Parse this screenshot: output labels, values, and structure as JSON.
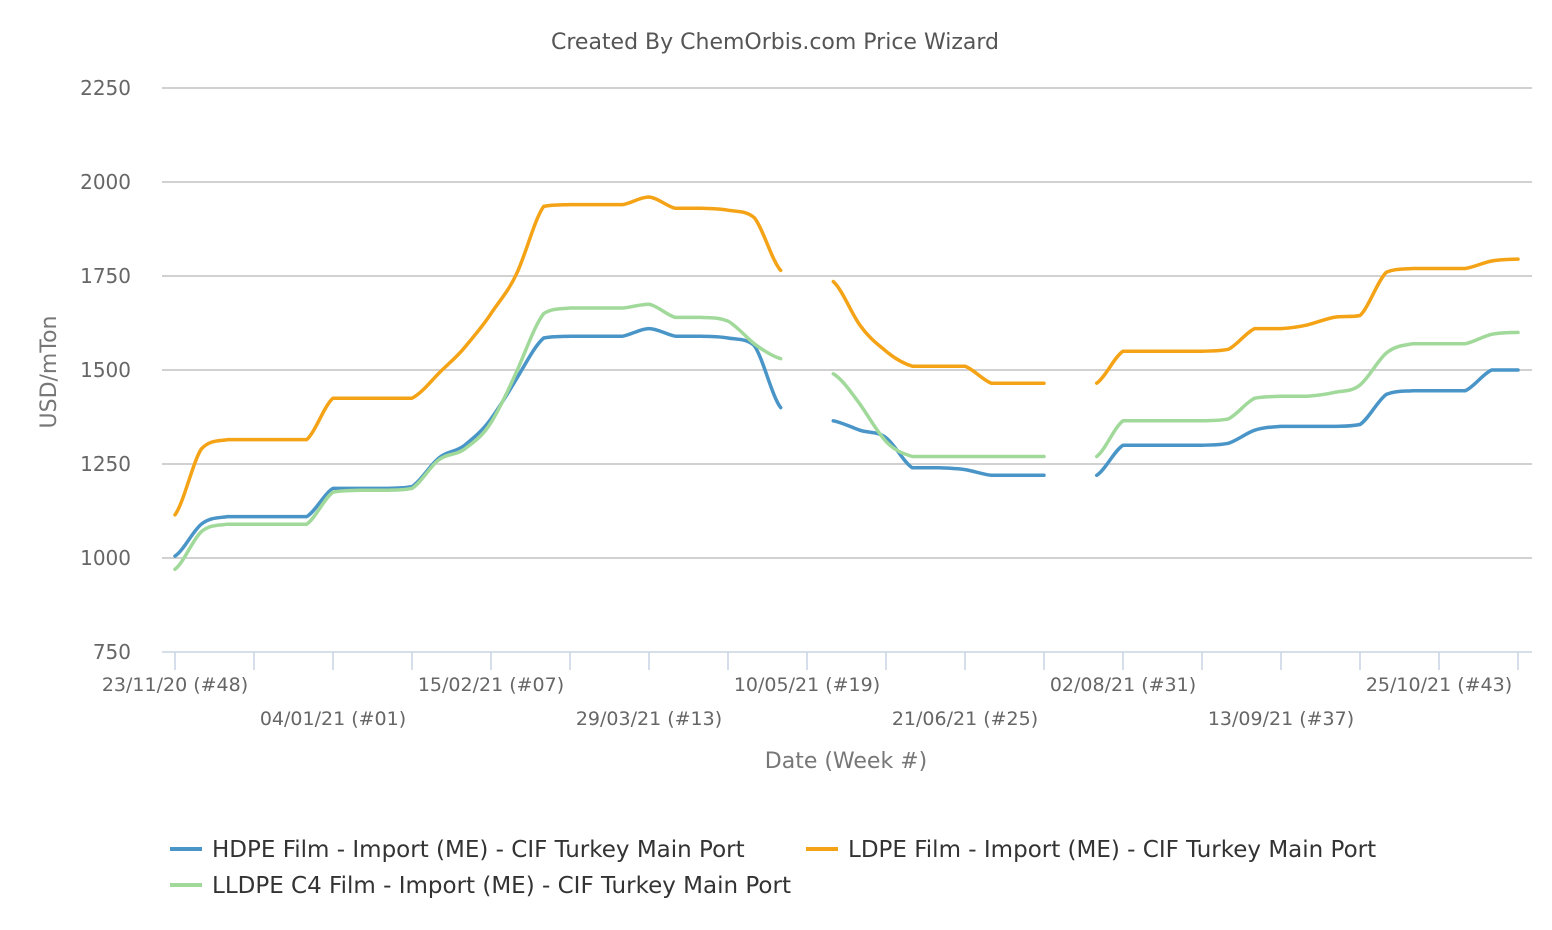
{
  "chart_data": {
    "type": "line",
    "title": "Created By ChemOrbis.com Price Wizard",
    "xlabel": "Date (Week #)",
    "ylabel": "USD/mTon",
    "ylim": [
      750,
      2250
    ],
    "yticks": [
      750,
      1000,
      1250,
      1500,
      1750,
      2000,
      2250
    ],
    "grid": true,
    "legend_position": "bottom",
    "x_tick_labels": [
      {
        "week": 0,
        "label": "23/11/20 (#48)"
      },
      {
        "week": 6,
        "label": "04/01/21 (#01)"
      },
      {
        "week": 12,
        "label": "15/02/21 (#07)"
      },
      {
        "week": 18,
        "label": "29/03/21 (#13)"
      },
      {
        "week": 24,
        "label": "10/05/21 (#19)"
      },
      {
        "week": 30,
        "label": "21/06/21 (#25)"
      },
      {
        "week": 36,
        "label": "02/08/21 (#31)"
      },
      {
        "week": 42,
        "label": "13/09/21 (#37)"
      },
      {
        "week": 48,
        "label": "25/10/21 (#43)"
      }
    ],
    "x_extra_ticks": [
      3,
      9,
      15,
      21,
      27,
      33,
      39,
      45,
      51
    ],
    "x_range": [
      0,
      51
    ],
    "series": [
      {
        "name": "HDPE Film - Import (ME) - CIF Turkey Main Port",
        "color": "#4a95c8",
        "segments": [
          [
            [
              0,
              1005
            ],
            [
              1,
              1090
            ],
            [
              2,
              1110
            ],
            [
              3,
              1110
            ],
            [
              4,
              1110
            ],
            [
              5,
              1110
            ],
            [
              6,
              1185
            ],
            [
              7,
              1185
            ],
            [
              8,
              1185
            ],
            [
              9,
              1190
            ],
            [
              10,
              1265
            ],
            [
              11,
              1300
            ],
            [
              12,
              1370
            ],
            [
              13,
              1480
            ],
            [
              14,
              1585
            ],
            [
              15,
              1590
            ],
            [
              16,
              1590
            ],
            [
              17,
              1590
            ],
            [
              18,
              1610
            ],
            [
              19,
              1590
            ],
            [
              20,
              1590
            ],
            [
              21,
              1585
            ],
            [
              22,
              1565
            ],
            [
              23,
              1400
            ]
          ],
          [
            [
              25,
              1365
            ],
            [
              26,
              1340
            ],
            [
              27,
              1320
            ],
            [
              28,
              1240
            ],
            [
              29,
              1240
            ],
            [
              30,
              1235
            ],
            [
              31,
              1220
            ],
            [
              32,
              1220
            ],
            [
              33,
              1220
            ]
          ],
          [
            [
              35,
              1220
            ],
            [
              36,
              1300
            ],
            [
              37,
              1300
            ],
            [
              38,
              1300
            ],
            [
              39,
              1300
            ],
            [
              40,
              1305
            ],
            [
              41,
              1340
            ],
            [
              42,
              1350
            ],
            [
              43,
              1350
            ],
            [
              44,
              1350
            ],
            [
              45,
              1355
            ],
            [
              46,
              1435
            ],
            [
              47,
              1445
            ],
            [
              48,
              1445
            ],
            [
              49,
              1445
            ],
            [
              50,
              1500
            ],
            [
              51,
              1500
            ]
          ]
        ]
      },
      {
        "name": "LDPE Film - Import (ME) - CIF Turkey Main Port",
        "color": "#f5a316",
        "segments": [
          [
            [
              0,
              1115
            ],
            [
              1,
              1290
            ],
            [
              2,
              1315
            ],
            [
              3,
              1315
            ],
            [
              4,
              1315
            ],
            [
              5,
              1315
            ],
            [
              6,
              1425
            ],
            [
              7,
              1425
            ],
            [
              8,
              1425
            ],
            [
              9,
              1425
            ],
            [
              10,
              1490
            ],
            [
              11,
              1560
            ],
            [
              12,
              1650
            ],
            [
              13,
              1760
            ],
            [
              14,
              1935
            ],
            [
              15,
              1940
            ],
            [
              16,
              1940
            ],
            [
              17,
              1940
            ],
            [
              18,
              1960
            ],
            [
              19,
              1930
            ],
            [
              20,
              1930
            ],
            [
              21,
              1925
            ],
            [
              22,
              1905
            ],
            [
              23,
              1765
            ]
          ],
          [
            [
              25,
              1735
            ],
            [
              26,
              1620
            ],
            [
              27,
              1550
            ],
            [
              28,
              1510
            ],
            [
              29,
              1510
            ],
            [
              30,
              1510
            ],
            [
              31,
              1465
            ],
            [
              32,
              1465
            ],
            [
              33,
              1465
            ]
          ],
          [
            [
              35,
              1465
            ],
            [
              36,
              1550
            ],
            [
              37,
              1550
            ],
            [
              38,
              1550
            ],
            [
              39,
              1550
            ],
            [
              40,
              1555
            ],
            [
              41,
              1610
            ],
            [
              42,
              1610
            ],
            [
              43,
              1620
            ],
            [
              44,
              1640
            ],
            [
              45,
              1645
            ],
            [
              46,
              1760
            ],
            [
              47,
              1770
            ],
            [
              48,
              1770
            ],
            [
              49,
              1770
            ],
            [
              50,
              1790
            ],
            [
              51,
              1795
            ]
          ]
        ]
      },
      {
        "name": "LLDPE C4 Film - Import (ME) - CIF Turkey Main Port",
        "color": "#a1d99b",
        "segments": [
          [
            [
              0,
              970
            ],
            [
              1,
              1070
            ],
            [
              2,
              1090
            ],
            [
              3,
              1090
            ],
            [
              4,
              1090
            ],
            [
              5,
              1090
            ],
            [
              6,
              1175
            ],
            [
              7,
              1180
            ],
            [
              8,
              1180
            ],
            [
              9,
              1185
            ],
            [
              10,
              1260
            ],
            [
              11,
              1290
            ],
            [
              12,
              1360
            ],
            [
              13,
              1500
            ],
            [
              14,
              1650
            ],
            [
              15,
              1665
            ],
            [
              16,
              1665
            ],
            [
              17,
              1665
            ],
            [
              18,
              1675
            ],
            [
              19,
              1640
            ],
            [
              20,
              1640
            ],
            [
              21,
              1630
            ],
            [
              22,
              1570
            ],
            [
              23,
              1530
            ]
          ],
          [
            [
              25,
              1490
            ],
            [
              26,
              1410
            ],
            [
              27,
              1310
            ],
            [
              28,
              1270
            ],
            [
              29,
              1270
            ],
            [
              30,
              1270
            ],
            [
              31,
              1270
            ],
            [
              32,
              1270
            ],
            [
              33,
              1270
            ]
          ],
          [
            [
              35,
              1270
            ],
            [
              36,
              1365
            ],
            [
              37,
              1365
            ],
            [
              38,
              1365
            ],
            [
              39,
              1365
            ],
            [
              40,
              1370
            ],
            [
              41,
              1425
            ],
            [
              42,
              1430
            ],
            [
              43,
              1430
            ],
            [
              44,
              1440
            ],
            [
              45,
              1460
            ],
            [
              46,
              1545
            ],
            [
              47,
              1570
            ],
            [
              48,
              1570
            ],
            [
              49,
              1570
            ],
            [
              50,
              1595
            ],
            [
              51,
              1600
            ]
          ]
        ]
      }
    ]
  }
}
